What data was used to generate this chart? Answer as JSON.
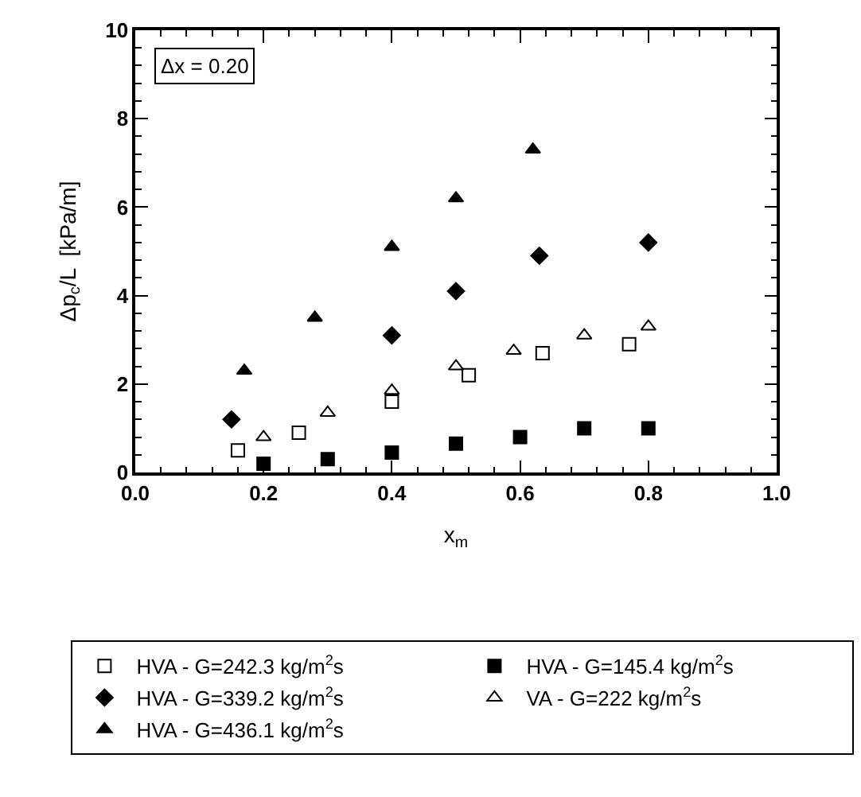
{
  "chart_data": {
    "type": "scatter",
    "xlabel": "x$_{m}$",
    "ylabel": "Δp$_{c}$/L  [kPa/m]",
    "xlim": [
      0,
      1
    ],
    "xticks": [
      {
        "value": 0,
        "label": "0.0"
      },
      {
        "value": 0.2,
        "label": "0.2"
      },
      {
        "value": 0.4,
        "label": "0.4"
      },
      {
        "value": 0.6,
        "label": "0.6"
      },
      {
        "value": 0.8,
        "label": "0.8"
      },
      {
        "value": 1,
        "label": "1.0"
      }
    ],
    "ylim": [
      0,
      10
    ],
    "yticks": [
      0,
      2,
      4,
      6,
      8,
      10
    ],
    "grid": false,
    "legend": "bottom",
    "annotations": [
      "Δx = 0.20"
    ],
    "series": [
      {
        "name": "HVA - G=242.3 kg/m$^{2}$s",
        "color": "#000000",
        "marker": "square-open",
        "x": [
          0.16,
          0.255,
          0.4,
          0.52,
          0.635,
          0.77
        ],
        "values": [
          0.5,
          0.9,
          1.6,
          2.2,
          2.7,
          2.9
        ]
      },
      {
        "name": "HVA - G=145.4 kg/m$^{2}$s",
        "color": "#000000",
        "marker": "square",
        "x": [
          0.2,
          0.3,
          0.4,
          0.5,
          0.6,
          0.7,
          0.8
        ],
        "values": [
          0.2,
          0.3,
          0.45,
          0.65,
          0.8,
          1.0,
          1.0
        ]
      },
      {
        "name": "HVA - G=339.2 kg/m$^{2}$s",
        "color": "#000000",
        "marker": "diamond",
        "x": [
          0.15,
          0.4,
          0.5,
          0.63,
          0.8
        ],
        "values": [
          1.2,
          3.1,
          4.1,
          4.9,
          5.2
        ]
      },
      {
        "name": "VA - G=222 kg/m$^{2}$s",
        "color": "#000000",
        "marker": "triangle-up-open",
        "x": [
          0.2,
          0.3,
          0.4,
          0.5,
          0.59,
          0.7,
          0.8
        ],
        "values": [
          0.8,
          1.35,
          1.85,
          2.4,
          2.75,
          3.1,
          3.3
        ]
      },
      {
        "name": "HVA - G=436.1 kg/m$^{2}$s",
        "color": "#000000",
        "marker": "triangle-up",
        "x": [
          0.17,
          0.28,
          0.4,
          0.5,
          0.62
        ],
        "values": [
          2.3,
          3.5,
          5.1,
          6.2,
          7.3
        ]
      }
    ]
  }
}
